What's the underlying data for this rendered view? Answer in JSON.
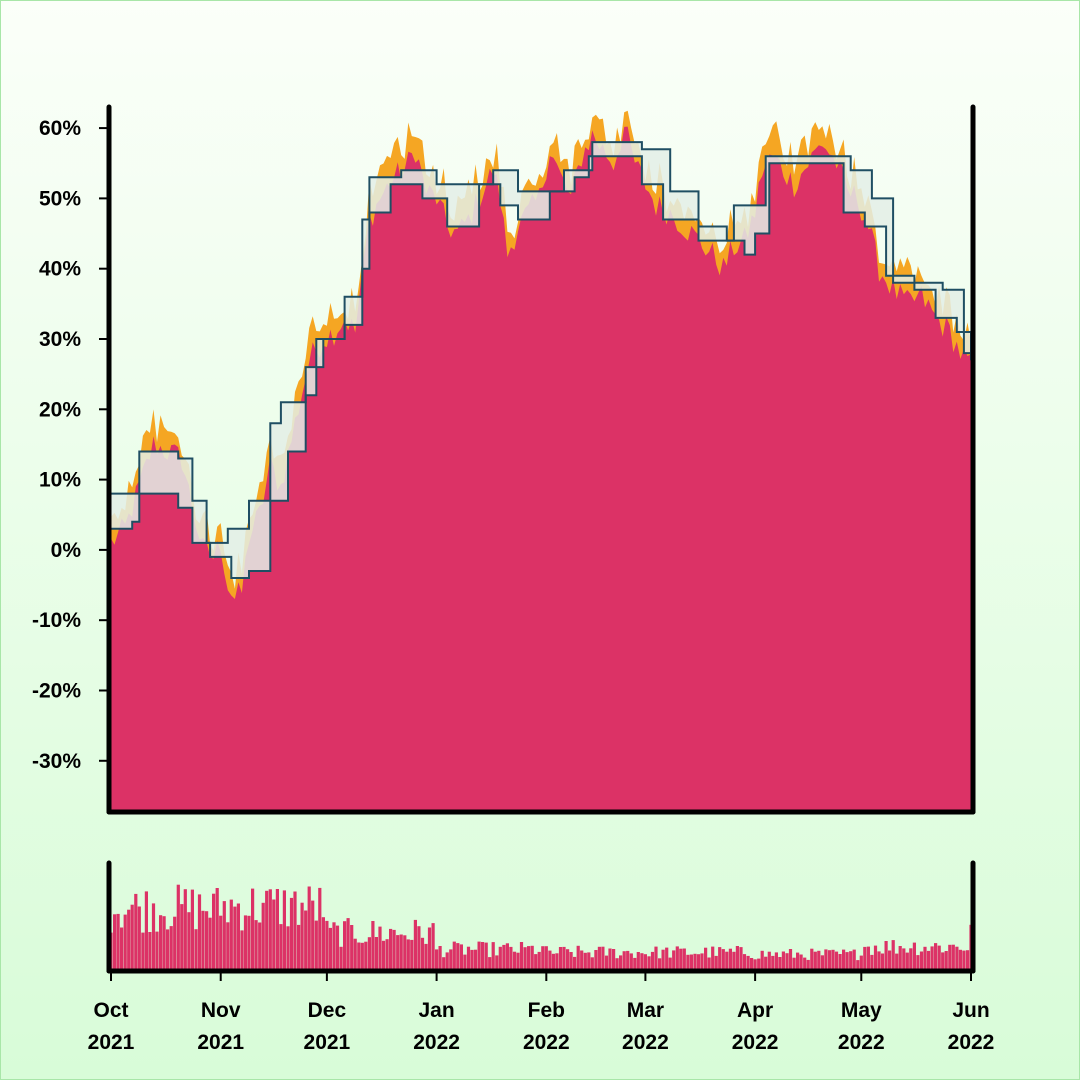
{
  "colors": {
    "area": "#dc3266",
    "envelope": "#f5a623",
    "band_fill": "#e3efe6",
    "band_line": "#1f4e63",
    "volume": "#dc3266",
    "axis": "#000000"
  },
  "chart_data": [
    {
      "type": "area",
      "title": "",
      "xlabel": "",
      "ylabel": "",
      "x_ticks": [
        {
          "date": "2021-10-01",
          "label": [
            "Oct",
            "2021"
          ]
        },
        {
          "date": "2021-11-01",
          "label": [
            "Nov",
            "2021"
          ]
        },
        {
          "date": "2021-12-01",
          "label": [
            "Dec",
            "2021"
          ]
        },
        {
          "date": "2022-01-01",
          "label": [
            "Jan",
            "2022"
          ]
        },
        {
          "date": "2022-02-01",
          "label": [
            "Feb",
            "2022"
          ]
        },
        {
          "date": "2022-03-01",
          "label": [
            "Mar",
            "2022"
          ]
        },
        {
          "date": "2022-04-01",
          "label": [
            "Apr",
            "2022"
          ]
        },
        {
          "date": "2022-05-01",
          "label": [
            "May",
            "2022"
          ]
        },
        {
          "date": "2022-06-01",
          "label": [
            "Jun",
            "2022"
          ]
        }
      ],
      "y_ticks": [
        "-30%",
        "-20%",
        "-10%",
        "0%",
        "10%",
        "20%",
        "30%",
        "40%",
        "50%",
        "60%"
      ],
      "y_tick_values": [
        -30,
        -20,
        -10,
        0,
        10,
        20,
        30,
        40,
        50,
        60
      ],
      "ylim": [
        -37,
        63
      ],
      "xlim": [
        "2021-10-01",
        "2022-06-01"
      ],
      "grid": false,
      "series": [
        {
          "role": "return",
          "points": [
            [
              "2021-10-01",
              1
            ],
            [
              "2021-10-05",
              3
            ],
            [
              "2021-10-09",
              9
            ],
            [
              "2021-10-13",
              15
            ],
            [
              "2021-10-17",
              14
            ],
            [
              "2021-10-21",
              13
            ],
            [
              "2021-10-24",
              6
            ],
            [
              "2021-10-27",
              0
            ],
            [
              "2021-10-30",
              -1
            ],
            [
              "2021-11-01",
              1
            ],
            [
              "2021-11-03",
              -5
            ],
            [
              "2021-11-05",
              -7
            ],
            [
              "2021-11-07",
              -6
            ],
            [
              "2021-11-09",
              2
            ],
            [
              "2021-11-12",
              5
            ],
            [
              "2021-11-15",
              12
            ],
            [
              "2021-11-18",
              9
            ],
            [
              "2021-11-22",
              18
            ],
            [
              "2021-11-26",
              27
            ],
            [
              "2021-11-30",
              30
            ],
            [
              "2021-12-03",
              31
            ],
            [
              "2021-12-06",
              33
            ],
            [
              "2021-12-09",
              31
            ],
            [
              "2021-12-13",
              47
            ],
            [
              "2021-12-16",
              50
            ],
            [
              "2021-12-20",
              53
            ],
            [
              "2021-12-23",
              54
            ],
            [
              "2021-12-26",
              57
            ],
            [
              "2021-12-29",
              51
            ],
            [
              "2022-01-01",
              50
            ],
            [
              "2022-01-04",
              46
            ],
            [
              "2022-01-07",
              45
            ],
            [
              "2022-01-10",
              47
            ],
            [
              "2022-01-13",
              50
            ],
            [
              "2022-01-17",
              54
            ],
            [
              "2022-01-19",
              50
            ],
            [
              "2022-01-21",
              42
            ],
            [
              "2022-01-24",
              46
            ],
            [
              "2022-01-27",
              48
            ],
            [
              "2022-01-30",
              50
            ],
            [
              "2022-02-02",
              57
            ],
            [
              "2022-02-05",
              53
            ],
            [
              "2022-02-08",
              50
            ],
            [
              "2022-02-11",
              56
            ],
            [
              "2022-02-14",
              59
            ],
            [
              "2022-02-17",
              57
            ],
            [
              "2022-02-20",
              55
            ],
            [
              "2022-02-23",
              60
            ],
            [
              "2022-02-26",
              55
            ],
            [
              "2022-03-01",
              52
            ],
            [
              "2022-03-04",
              49
            ],
            [
              "2022-03-08",
              48
            ],
            [
              "2022-03-12",
              46
            ],
            [
              "2022-03-16",
              44
            ],
            [
              "2022-03-20",
              42
            ],
            [
              "2022-03-23",
              40
            ],
            [
              "2022-03-26",
              43
            ],
            [
              "2022-03-29",
              44
            ],
            [
              "2022-04-01",
              48
            ],
            [
              "2022-04-03",
              54
            ],
            [
              "2022-04-06",
              56
            ],
            [
              "2022-04-09",
              54
            ],
            [
              "2022-04-12",
              52
            ],
            [
              "2022-04-16",
              55
            ],
            [
              "2022-04-20",
              58
            ],
            [
              "2022-04-24",
              55
            ],
            [
              "2022-04-27",
              51
            ],
            [
              "2022-04-30",
              50
            ],
            [
              "2022-05-03",
              46
            ],
            [
              "2022-05-06",
              40
            ],
            [
              "2022-05-10",
              37
            ],
            [
              "2022-05-14",
              35
            ],
            [
              "2022-05-18",
              36
            ],
            [
              "2022-05-22",
              33
            ],
            [
              "2022-05-26",
              31
            ],
            [
              "2022-05-29",
              28
            ],
            [
              "2022-06-01",
              26
            ]
          ]
        },
        {
          "role": "upper-band",
          "points": [
            [
              "2021-10-01",
              3
            ],
            [
              "2021-10-07",
              4
            ],
            [
              "2021-10-09",
              14
            ],
            [
              "2021-10-16",
              14
            ],
            [
              "2021-10-20",
              13
            ],
            [
              "2021-10-24",
              7
            ],
            [
              "2021-10-28",
              1
            ],
            [
              "2021-11-03",
              3
            ],
            [
              "2021-11-09",
              7
            ],
            [
              "2021-11-15",
              18
            ],
            [
              "2021-11-18",
              21
            ],
            [
              "2021-11-25",
              22
            ],
            [
              "2021-11-28",
              30
            ],
            [
              "2021-12-06",
              36
            ],
            [
              "2021-12-11",
              47
            ],
            [
              "2021-12-13",
              53
            ],
            [
              "2021-12-22",
              54
            ],
            [
              "2021-12-28",
              54
            ],
            [
              "2022-01-01",
              52
            ],
            [
              "2022-01-17",
              54
            ],
            [
              "2022-01-24",
              51
            ],
            [
              "2022-02-06",
              54
            ],
            [
              "2022-02-14",
              58
            ],
            [
              "2022-02-20",
              58
            ],
            [
              "2022-02-28",
              57
            ],
            [
              "2022-03-08",
              51
            ],
            [
              "2022-03-16",
              46
            ],
            [
              "2022-03-24",
              44
            ],
            [
              "2022-03-26",
              49
            ],
            [
              "2022-04-01",
              49
            ],
            [
              "2022-04-04",
              56
            ],
            [
              "2022-04-21",
              56
            ],
            [
              "2022-04-28",
              54
            ],
            [
              "2022-05-04",
              50
            ],
            [
              "2022-05-10",
              38
            ],
            [
              "2022-05-18",
              38
            ],
            [
              "2022-05-24",
              37
            ],
            [
              "2022-05-30",
              28
            ],
            [
              "2022-06-01",
              27
            ]
          ]
        },
        {
          "role": "lower-band",
          "points": [
            [
              "2021-10-01",
              8
            ],
            [
              "2021-10-15",
              8
            ],
            [
              "2021-10-20",
              6
            ],
            [
              "2021-10-24",
              1
            ],
            [
              "2021-10-29",
              -1
            ],
            [
              "2021-11-04",
              -4
            ],
            [
              "2021-11-09",
              -3
            ],
            [
              "2021-11-15",
              7
            ],
            [
              "2021-11-20",
              14
            ],
            [
              "2021-11-25",
              26
            ],
            [
              "2021-11-30",
              30
            ],
            [
              "2021-12-06",
              32
            ],
            [
              "2021-12-11",
              40
            ],
            [
              "2021-12-13",
              48
            ],
            [
              "2021-12-19",
              52
            ],
            [
              "2021-12-28",
              50
            ],
            [
              "2022-01-04",
              46
            ],
            [
              "2022-01-13",
              52
            ],
            [
              "2022-01-19",
              49
            ],
            [
              "2022-01-24",
              47
            ],
            [
              "2022-02-02",
              51
            ],
            [
              "2022-02-09",
              53
            ],
            [
              "2022-02-13",
              56
            ],
            [
              "2022-02-20",
              56
            ],
            [
              "2022-02-28",
              52
            ],
            [
              "2022-03-06",
              47
            ],
            [
              "2022-03-16",
              44
            ],
            [
              "2022-03-26",
              44
            ],
            [
              "2022-03-29",
              42
            ],
            [
              "2022-04-01",
              45
            ],
            [
              "2022-04-05",
              55
            ],
            [
              "2022-04-20",
              55
            ],
            [
              "2022-04-26",
              48
            ],
            [
              "2022-05-02",
              46
            ],
            [
              "2022-05-08",
              39
            ],
            [
              "2022-05-16",
              37
            ],
            [
              "2022-05-22",
              33
            ],
            [
              "2022-05-28",
              31
            ],
            [
              "2022-06-01",
              27
            ]
          ]
        }
      ]
    },
    {
      "type": "bar",
      "title": "",
      "xlabel": "",
      "ylabel": "",
      "y_ticks": [],
      "xlim": [
        "2021-10-01",
        "2022-06-01"
      ],
      "ylim": [
        0,
        1
      ],
      "bar_every_days": 1,
      "level_by_month": {
        "2021-10": 0.62,
        "2021-11": 0.64,
        "2021-12": 0.37,
        "2022-01": 0.2,
        "2022-02": 0.17,
        "2022-03": 0.17,
        "2022-04": 0.15,
        "2022-05": 0.23,
        "2022-06": 0.42
      }
    }
  ]
}
